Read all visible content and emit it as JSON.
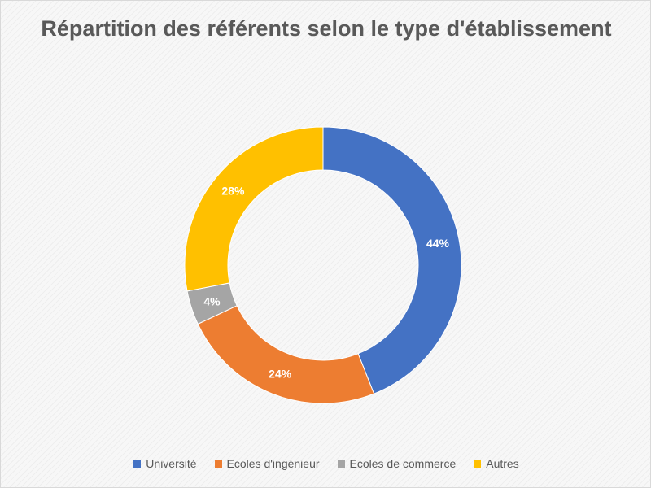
{
  "chart_data": {
    "type": "pie",
    "variant": "donut",
    "title": "Répartition des référents selon le type d'établissement",
    "categories": [
      "Université",
      "Ecoles d'ingénieur",
      "Ecoles de commerce",
      "Autres"
    ],
    "values": [
      44,
      24,
      4,
      28
    ],
    "data_labels": [
      "44%",
      "24%",
      "4%",
      "28%"
    ],
    "colors": [
      "#4472C4",
      "#ED7D31",
      "#A5A5A5",
      "#FFC000"
    ],
    "legend_position": "bottom"
  }
}
